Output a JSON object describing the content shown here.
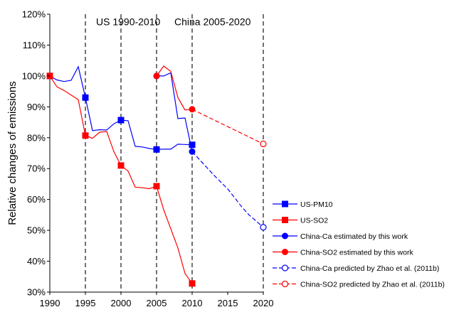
{
  "chart_data": {
    "type": "line",
    "ylabel": "Relative changes of emissions",
    "xlabel": "",
    "xlim": [
      1990,
      2020
    ],
    "ylim": [
      30,
      120
    ],
    "x_ticks": [
      1990,
      1995,
      2000,
      2005,
      2010,
      2015,
      2020
    ],
    "y_ticks": [
      30,
      40,
      50,
      60,
      70,
      80,
      90,
      100,
      110,
      120
    ],
    "y_tick_suffix": "%",
    "grid": false,
    "legend_position": "right",
    "vertical_lines": [
      1995,
      2000,
      2005,
      2010,
      2020
    ],
    "annotations": [
      {
        "text": "US 1990-2010",
        "x": 1996.5,
        "y": 117.6
      },
      {
        "text": "China 2005-2020",
        "x": 2007.5,
        "y": 117.6
      }
    ],
    "series": [
      {
        "name": "US-PM10",
        "color": "#0000ff",
        "dash": false,
        "marker": "square",
        "x": [
          1990,
          1991,
          1992,
          1993,
          1994,
          1995,
          1996,
          1997,
          1998,
          1999,
          2000,
          2001,
          2002,
          2003,
          2004,
          2005,
          2006,
          2007,
          2008,
          2009,
          2010
        ],
        "y": [
          100,
          98.7,
          98.2,
          98.6,
          103,
          93,
          82.3,
          82.6,
          82.5,
          84.5,
          85.7,
          85.5,
          77.2,
          77,
          76.5,
          76.2,
          76.3,
          76.3,
          77.9,
          77.8,
          77.7
        ],
        "markers_at": [
          1990,
          1995,
          2000,
          2005,
          2010
        ]
      },
      {
        "name": "US-SO2",
        "color": "#ff0000",
        "dash": false,
        "marker": "square",
        "x": [
          1990,
          1991,
          1992,
          1993,
          1994,
          1995,
          1996,
          1997,
          1998,
          1999,
          2000,
          2001,
          2002,
          2003,
          2004,
          2005,
          2006,
          2007,
          2008,
          2009,
          2010
        ],
        "y": [
          100,
          96.5,
          95.3,
          93.8,
          92.3,
          80.7,
          79.8,
          81.8,
          82,
          75.5,
          71,
          69.2,
          64,
          63.8,
          63.5,
          64.3,
          56.7,
          50.5,
          44.3,
          36,
          32.8
        ],
        "markers_at": [
          1990,
          1995,
          2000,
          2005,
          2010
        ]
      },
      {
        "name": "China-Ca estimated by this work",
        "color": "#0000ff",
        "dash": false,
        "marker": "circle",
        "x": [
          2005,
          2006,
          2007,
          2008,
          2009,
          2010
        ],
        "y": [
          100,
          100,
          101,
          86.2,
          86.4,
          75.5
        ],
        "markers_at": [
          2005,
          2010
        ]
      },
      {
        "name": "China-SO2 estimated by this work",
        "color": "#ff0000",
        "dash": false,
        "marker": "circle",
        "x": [
          2005,
          2006,
          2007,
          2008,
          2009,
          2010
        ],
        "y": [
          100,
          103.2,
          101.5,
          93,
          89,
          89.2
        ],
        "markers_at": [
          2005,
          2010
        ]
      },
      {
        "name": "China-Ca predicted by Zhao et al. (2011b)",
        "color": "#0000ff",
        "dash": true,
        "marker": "open-circle",
        "x": [
          2010,
          2011,
          2012,
          2013,
          2014,
          2015,
          2016,
          2017,
          2018,
          2019,
          2020
        ],
        "y": [
          75.5,
          73,
          70.5,
          68,
          65.7,
          63.4,
          60.5,
          57.5,
          55,
          53,
          51
        ],
        "markers_at": [
          2020
        ]
      },
      {
        "name": "China-SO2 predicted by Zhao et al. (2011b)",
        "color": "#ff0000",
        "dash": true,
        "marker": "open-circle",
        "x": [
          2010,
          2020
        ],
        "y": [
          89.2,
          78
        ],
        "markers_at": [
          2020
        ]
      }
    ]
  }
}
